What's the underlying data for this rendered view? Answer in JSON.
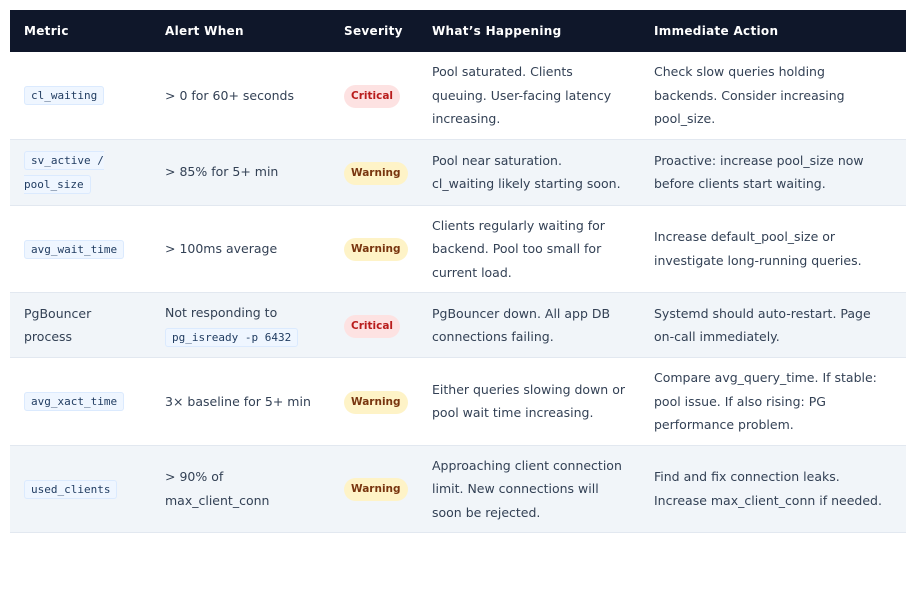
{
  "headers": [
    "Metric",
    "Alert When",
    "Severity",
    "What’s Happening",
    "Immediate Action"
  ],
  "colors": {
    "header_bg": "#0f172a",
    "critical_bg": "#fde2e2",
    "critical_text": "#b91c1c",
    "warning_bg": "#fef3c7",
    "warning_text": "#78350f"
  },
  "rows": [
    {
      "metric_code": "cl_waiting",
      "metric_text": "",
      "alert_text": "> 0 for 60+ seconds",
      "alert_code": "",
      "severity": "Critical",
      "what": "Pool saturated. Clients queuing. User-facing latency increasing.",
      "action": "Check slow queries holding backends. Consider increasing pool_size."
    },
    {
      "metric_code": "sv_active / pool_size",
      "metric_text": "",
      "alert_text": "> 85% for 5+ min",
      "alert_code": "",
      "severity": "Warning",
      "what": "Pool near saturation. cl_waiting likely starting soon.",
      "action": "Proactive: increase pool_size now before clients start waiting."
    },
    {
      "metric_code": "avg_wait_time",
      "metric_text": "",
      "alert_text": "> 100ms average",
      "alert_code": "",
      "severity": "Warning",
      "what": "Clients regularly waiting for backend. Pool too small for current load.",
      "action": "Increase default_pool_size or investigate long-running queries."
    },
    {
      "metric_code": "",
      "metric_text": "PgBouncer process",
      "alert_text": "Not responding to",
      "alert_code": "pg_isready -p 6432",
      "severity": "Critical",
      "what": "PgBouncer down. All app DB connections failing.",
      "action": "Systemd should auto-restart. Page on-call immediately."
    },
    {
      "metric_code": "avg_xact_time",
      "metric_text": "",
      "alert_text": "3× baseline for 5+ min",
      "alert_code": "",
      "severity": "Warning",
      "what": "Either queries slowing down or pool wait time increasing.",
      "action": "Compare avg_query_time. If stable: pool issue. If also rising: PG performance problem."
    },
    {
      "metric_code": "used_clients",
      "metric_text": "",
      "alert_text": "> 90% of max_client_conn",
      "alert_code": "",
      "severity": "Warning",
      "what": "Approaching client connection limit. New connections will soon be rejected.",
      "action": "Find and fix connection leaks. Increase max_client_conn if needed."
    }
  ]
}
